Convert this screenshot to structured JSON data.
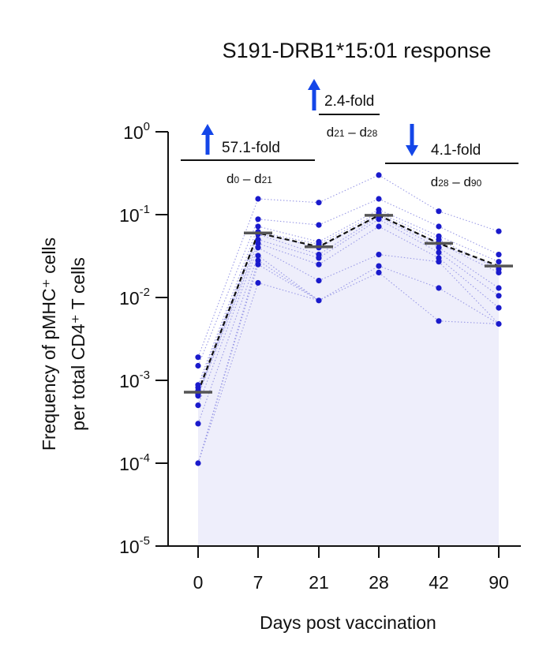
{
  "chart_data": {
    "type": "scatter",
    "title": "S191-DRB1*15:01 response",
    "xlabel": "Days post vaccination",
    "ylabel_lines": [
      "Frequency of pMHC⁺ cells",
      "per total CD4⁺ T cells"
    ],
    "yscale": "log",
    "ylim": [
      1e-05,
      1
    ],
    "y_ticks": [
      {
        "value": 1,
        "base": "10",
        "exp": "0"
      },
      {
        "value": 0.1,
        "base": "10",
        "exp": "-1"
      },
      {
        "value": 0.01,
        "base": "10",
        "exp": "-2"
      },
      {
        "value": 0.001,
        "base": "10",
        "exp": "-3"
      },
      {
        "value": 0.0001,
        "base": "10",
        "exp": "-4"
      },
      {
        "value": 1e-05,
        "base": "10",
        "exp": "-5"
      }
    ],
    "categories": [
      "0",
      "7",
      "21",
      "28",
      "42",
      "90"
    ],
    "points": [
      [
        0.0019,
        0.0015,
        0.00088,
        0.00082,
        0.00075,
        0.0007,
        0.00068,
        0.00065,
        0.0005,
        0.0003,
        0.0001
      ],
      [
        0.155,
        0.088,
        0.072,
        0.062,
        0.06,
        0.058,
        0.05,
        0.045,
        0.04,
        0.032,
        0.028,
        0.025,
        0.015
      ],
      [
        0.14,
        0.075,
        0.047,
        0.044,
        0.04,
        0.033,
        0.03,
        0.025,
        0.016,
        0.0092
      ],
      [
        0.3,
        0.155,
        0.115,
        0.105,
        0.1,
        0.095,
        0.088,
        0.072,
        0.033,
        0.024,
        0.02
      ],
      [
        0.11,
        0.072,
        0.055,
        0.05,
        0.045,
        0.04,
        0.035,
        0.03,
        0.027,
        0.013,
        0.0052
      ],
      [
        0.063,
        0.033,
        0.027,
        0.022,
        0.02,
        0.013,
        0.0105,
        0.0075,
        0.0048
      ]
    ],
    "medians": [
      0.00072,
      0.06,
      0.041,
      0.098,
      0.045,
      0.024
    ],
    "annotations": [
      {
        "fold": "57.1-fold",
        "range_from": "d0",
        "range_to": "d21",
        "direction": "up",
        "from_index": 0,
        "to_index": 2
      },
      {
        "fold": "2.4-fold",
        "range_from": "d21",
        "range_to": "d28",
        "direction": "up",
        "from_index": 2,
        "to_index": 3
      },
      {
        "fold": "4.1-fold",
        "range_from": "d28",
        "range_to": "d90",
        "direction": "down",
        "from_index": 3,
        "to_index": 5
      }
    ],
    "dash_separator": "–",
    "colors": {
      "point": "#1a1acc",
      "arrow": "#1446e8",
      "area": "#eeeefb",
      "individual_line": "#9a9ae6",
      "median_line": "#111111",
      "median_mark": "#555555",
      "axis": "#111111"
    }
  }
}
